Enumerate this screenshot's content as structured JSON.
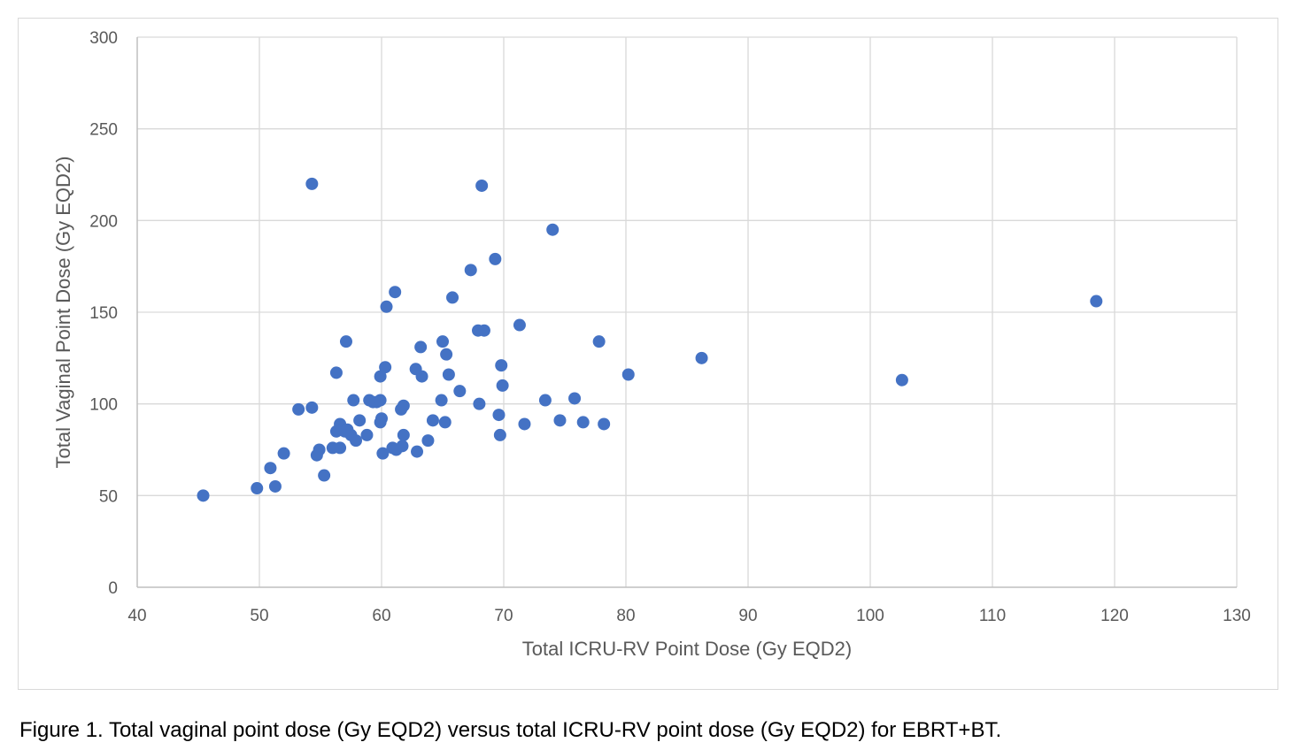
{
  "chart_data": {
    "type": "scatter",
    "title": "",
    "xlabel": "Total ICRU-RV Point Dose (Gy EQD2)",
    "ylabel": "Total Vaginal Point Dose (Gy EQD2)",
    "xlim": [
      40,
      130
    ],
    "ylim": [
      0,
      300
    ],
    "x_ticks": [
      40,
      50,
      60,
      70,
      80,
      90,
      100,
      110,
      120,
      130
    ],
    "y_ticks": [
      0,
      50,
      100,
      150,
      200,
      250,
      300
    ],
    "grid": true,
    "legend": "none",
    "colors": {
      "marker": "#4472c4",
      "grid": "#d9d9d9",
      "axis": "#bfbfbf"
    },
    "points": [
      [
        45.4,
        50
      ],
      [
        49.8,
        54
      ],
      [
        50.9,
        65
      ],
      [
        51.3,
        55
      ],
      [
        52.0,
        73
      ],
      [
        53.2,
        97
      ],
      [
        54.3,
        98
      ],
      [
        54.7,
        72
      ],
      [
        54.9,
        75
      ],
      [
        55.3,
        61
      ],
      [
        54.3,
        220
      ],
      [
        56.0,
        76
      ],
      [
        56.3,
        85
      ],
      [
        56.3,
        117
      ],
      [
        56.6,
        76
      ],
      [
        56.6,
        89
      ],
      [
        56.8,
        86
      ],
      [
        57.0,
        85
      ],
      [
        57.2,
        86
      ],
      [
        57.5,
        83
      ],
      [
        57.1,
        134
      ],
      [
        57.7,
        102
      ],
      [
        57.9,
        80
      ],
      [
        58.2,
        91
      ],
      [
        58.8,
        83
      ],
      [
        59.0,
        102
      ],
      [
        59.3,
        101
      ],
      [
        59.6,
        101
      ],
      [
        59.9,
        115
      ],
      [
        59.9,
        102
      ],
      [
        59.9,
        90
      ],
      [
        60.0,
        92
      ],
      [
        60.1,
        73
      ],
      [
        60.3,
        120
      ],
      [
        60.4,
        153
      ],
      [
        60.9,
        76
      ],
      [
        61.1,
        161
      ],
      [
        61.2,
        75
      ],
      [
        61.6,
        97
      ],
      [
        61.7,
        77
      ],
      [
        61.8,
        83
      ],
      [
        61.8,
        99
      ],
      [
        62.8,
        119
      ],
      [
        62.9,
        74
      ],
      [
        63.2,
        131
      ],
      [
        63.3,
        115
      ],
      [
        63.8,
        80
      ],
      [
        64.2,
        91
      ],
      [
        64.9,
        102
      ],
      [
        65.0,
        134
      ],
      [
        65.2,
        90
      ],
      [
        65.3,
        127
      ],
      [
        65.5,
        116
      ],
      [
        65.8,
        158
      ],
      [
        66.4,
        107
      ],
      [
        67.3,
        173
      ],
      [
        67.9,
        140
      ],
      [
        68.0,
        100
      ],
      [
        68.2,
        219
      ],
      [
        68.4,
        140
      ],
      [
        69.3,
        179
      ],
      [
        69.6,
        94
      ],
      [
        69.7,
        83
      ],
      [
        69.8,
        121
      ],
      [
        69.9,
        110
      ],
      [
        71.3,
        143
      ],
      [
        71.7,
        89
      ],
      [
        73.4,
        102
      ],
      [
        74.0,
        195
      ],
      [
        74.6,
        91
      ],
      [
        75.8,
        103
      ],
      [
        76.5,
        90
      ],
      [
        77.8,
        134
      ],
      [
        78.2,
        89
      ],
      [
        80.2,
        116
      ],
      [
        86.2,
        125
      ],
      [
        102.6,
        113
      ],
      [
        118.5,
        156
      ]
    ]
  },
  "caption": "Figure 1. Total vaginal point dose (Gy EQD2) versus total ICRU-RV point dose (Gy EQD2) for EBRT+BT."
}
